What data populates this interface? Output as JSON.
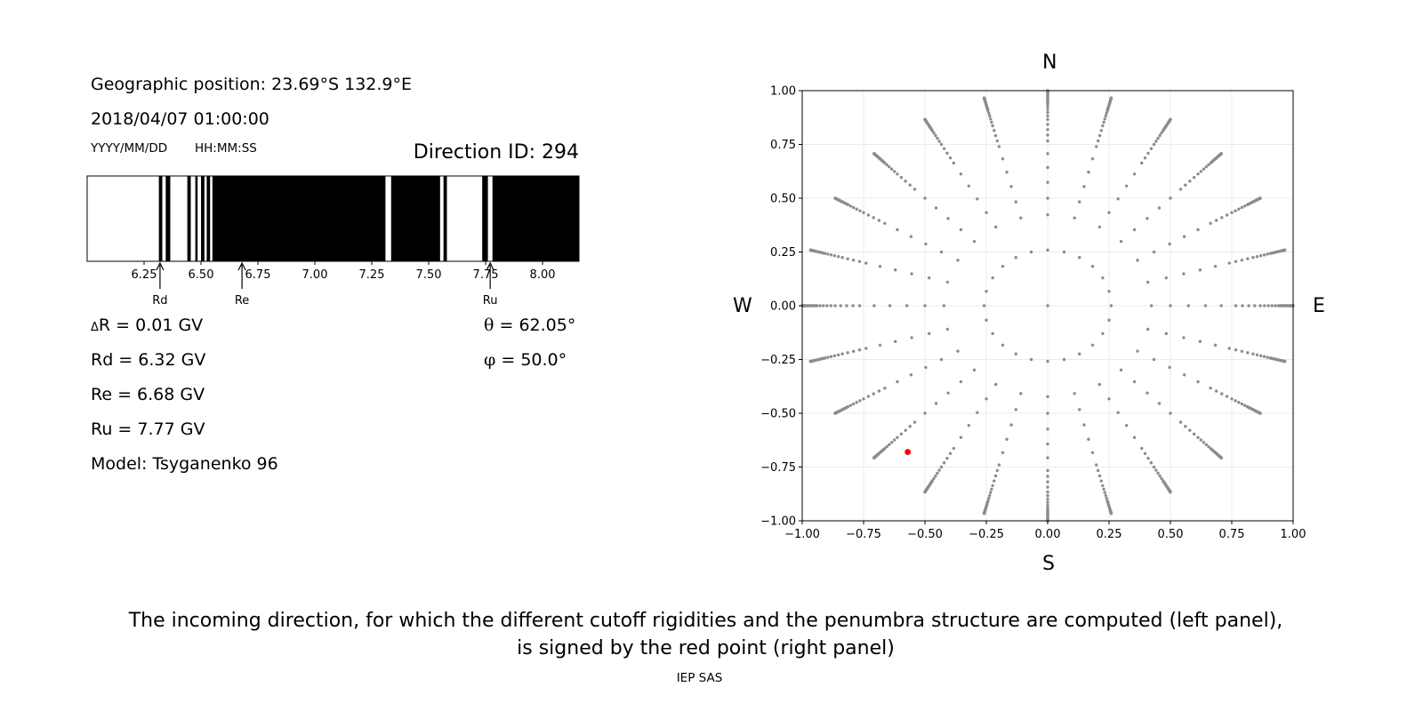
{
  "info": {
    "geo_position": "Geographic position: 23.69°S 132.9°E",
    "datetime": "2018/04/07 01:00:00",
    "date_format": "YYYY/MM/DD",
    "time_format": "HH:MM:SS",
    "direction_id": "Direction ID: 294",
    "delta_r_symbol": "Δ",
    "delta_r": "R = 0.01 GV",
    "rd": "Rd = 6.32 GV",
    "re": "Re = 6.68 GV",
    "ru": "Ru = 7.77 GV",
    "model": "Model: Tsyganenko 96",
    "theta_symbol": "θ",
    "theta": "= 62.05°",
    "phi_symbol": "φ",
    "phi": "= 50.0°"
  },
  "caption": {
    "line1": "The incoming direction, for which the different cutoff rigidities and the penumbra structure are computed (left panel),",
    "line2": "is signed by the red point (right panel)",
    "credit": "IEP SAS"
  },
  "chart_data": [
    {
      "type": "penumbra",
      "xlim": [
        6.0,
        8.16
      ],
      "xticks": [
        6.25,
        6.5,
        6.75,
        7.0,
        7.25,
        7.5,
        7.75,
        8.0
      ],
      "xtick_labels": [
        "6.25",
        "6.50",
        "6.75",
        "7.00",
        "7.25",
        "7.50",
        "7.75",
        "8.00"
      ],
      "allowed_color": "#ffffff",
      "forbidden_color": "#000000",
      "forbidden_bands": [
        [
          6.315,
          6.33
        ],
        [
          6.345,
          6.365
        ],
        [
          6.44,
          6.455
        ],
        [
          6.475,
          6.485
        ],
        [
          6.5,
          6.515
        ],
        [
          6.525,
          6.54
        ],
        [
          6.55,
          7.31
        ],
        [
          7.335,
          7.55
        ],
        [
          7.565,
          7.58
        ],
        [
          7.735,
          7.76
        ],
        [
          7.78,
          8.16
        ]
      ],
      "markers": [
        {
          "label": "Rd",
          "value": 6.32
        },
        {
          "label": "Re",
          "value": 6.68
        },
        {
          "label": "Ru",
          "value": 7.77
        }
      ]
    },
    {
      "type": "scatter",
      "xlim": [
        -1.0,
        1.0
      ],
      "ylim": [
        -1.0,
        1.0
      ],
      "xticks": [
        -1.0,
        -0.75,
        -0.5,
        -0.25,
        0.0,
        0.25,
        0.5,
        0.75,
        1.0
      ],
      "yticks": [
        -1.0,
        -0.75,
        -0.5,
        -0.25,
        0.0,
        0.25,
        0.5,
        0.75,
        1.0
      ],
      "xtick_labels": [
        "−1.00",
        "−0.75",
        "−0.50",
        "−0.25",
        "0.00",
        "0.25",
        "0.50",
        "0.75",
        "1.00"
      ],
      "ytick_labels": [
        "−1.00",
        "−0.75",
        "−0.50",
        "−0.25",
        "0.00",
        "0.25",
        "0.50",
        "0.75",
        "1.00"
      ],
      "grid": true,
      "compass": {
        "north": "N",
        "south": "S",
        "west": "W",
        "east": "E"
      },
      "directions": {
        "azimuth_step_deg": 15,
        "zenith_rings_deg": [
          15,
          25,
          30,
          35,
          40,
          45,
          50,
          52.5,
          55,
          57.5,
          60,
          62,
          64,
          66,
          68,
          70,
          71,
          72,
          73,
          74,
          75,
          76,
          77,
          78,
          79,
          80,
          81,
          82,
          83,
          84,
          85,
          86,
          87,
          88,
          89,
          90
        ],
        "radius_formula": "sin(zenith)",
        "color": "#8c8c8c"
      },
      "highlight": {
        "x": -0.57,
        "y": -0.68,
        "color": "#ff0000"
      }
    }
  ]
}
